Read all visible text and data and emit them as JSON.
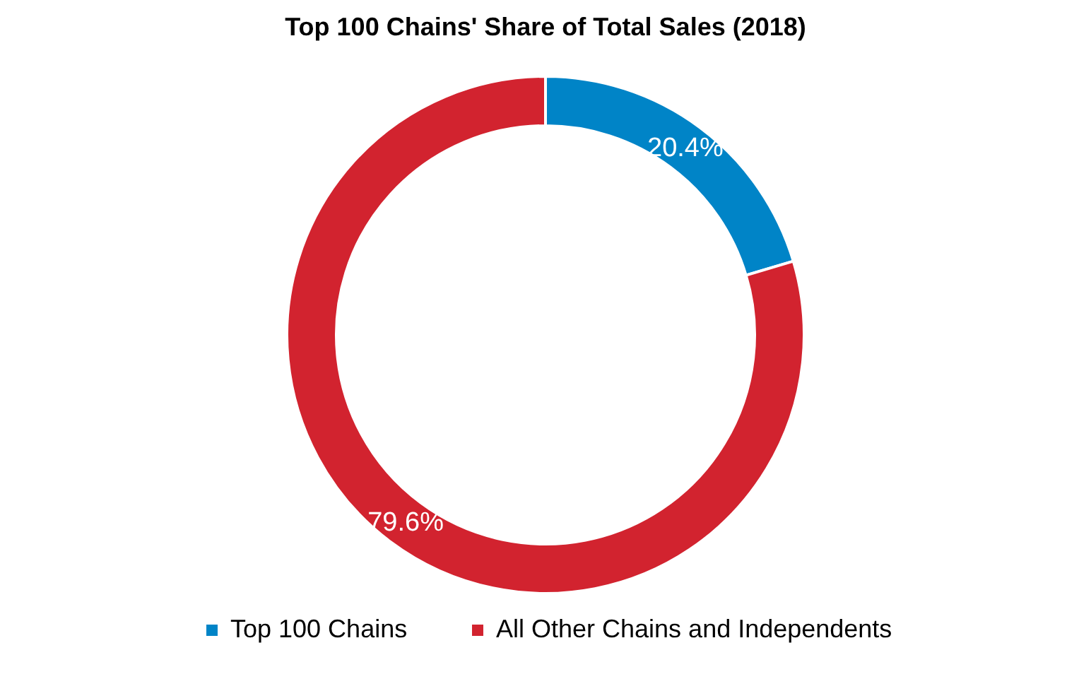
{
  "chart_data": {
    "type": "donut",
    "title": "Top 100 Chains' Share of Total Sales (2018)",
    "categories": [
      "Top 100 Chains",
      "All Other Chains and Independents"
    ],
    "values": [
      20.4,
      79.6
    ],
    "colors": [
      "#0084c7",
      "#d2232f"
    ],
    "value_labels": [
      "20.4%",
      "79.6%"
    ],
    "legend": "bottom"
  }
}
